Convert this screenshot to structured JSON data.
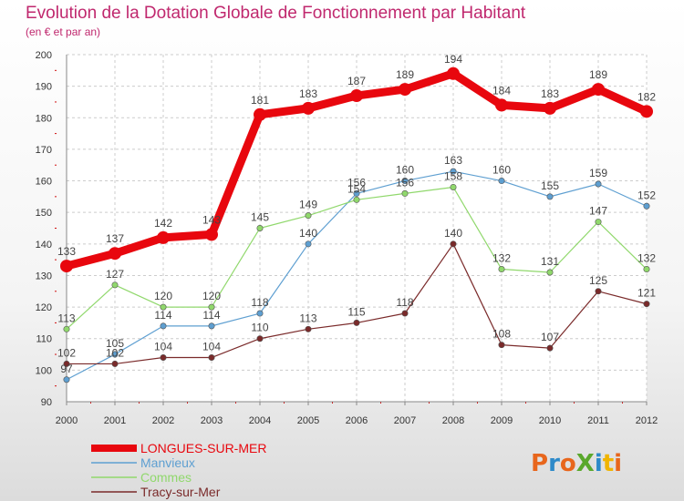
{
  "header": {
    "title": "Evolution de la Dotation Globale de Fonctionnement par Habitant",
    "subtitle": "(en € et par an)"
  },
  "logo": {
    "text": "ProXiti",
    "colors": [
      "#e8661c",
      "#2d8ac9",
      "#e8661c",
      "#5aa82c",
      "#2d8ac9",
      "#f0b400",
      "#e8661c"
    ]
  },
  "chart_data": {
    "type": "line",
    "title": "Evolution de la Dotation Globale de Fonctionnement par Habitant",
    "subtitle": "(en € et par an)",
    "x": [
      2000,
      2001,
      2002,
      2003,
      2004,
      2005,
      2006,
      2007,
      2008,
      2009,
      2010,
      2011,
      2012
    ],
    "ylim": [
      90,
      200
    ],
    "yticks": [
      90,
      100,
      110,
      120,
      130,
      140,
      150,
      160,
      170,
      180,
      190,
      200
    ],
    "grid": true,
    "legend_position": "bottom-left",
    "series": [
      {
        "name": "LONGUES-SUR-MER",
        "color": "#e8070e",
        "values": [
          133,
          137,
          142,
          143,
          181,
          183,
          187,
          189,
          194,
          184,
          183,
          189,
          182
        ]
      },
      {
        "name": "Manvieux",
        "color": "#5e9fd1",
        "values": [
          97,
          105,
          114,
          114,
          118,
          140,
          156,
          160,
          163,
          160,
          155,
          159,
          152
        ]
      },
      {
        "name": "Commes",
        "color": "#90d86c",
        "values": [
          113,
          127,
          120,
          120,
          145,
          149,
          154,
          156,
          158,
          132,
          131,
          147,
          132
        ]
      },
      {
        "name": "Tracy-sur-Mer",
        "color": "#7a2a2a",
        "values": [
          102,
          102,
          104,
          104,
          110,
          113,
          115,
          118,
          140,
          108,
          107,
          125,
          121
        ]
      }
    ]
  }
}
